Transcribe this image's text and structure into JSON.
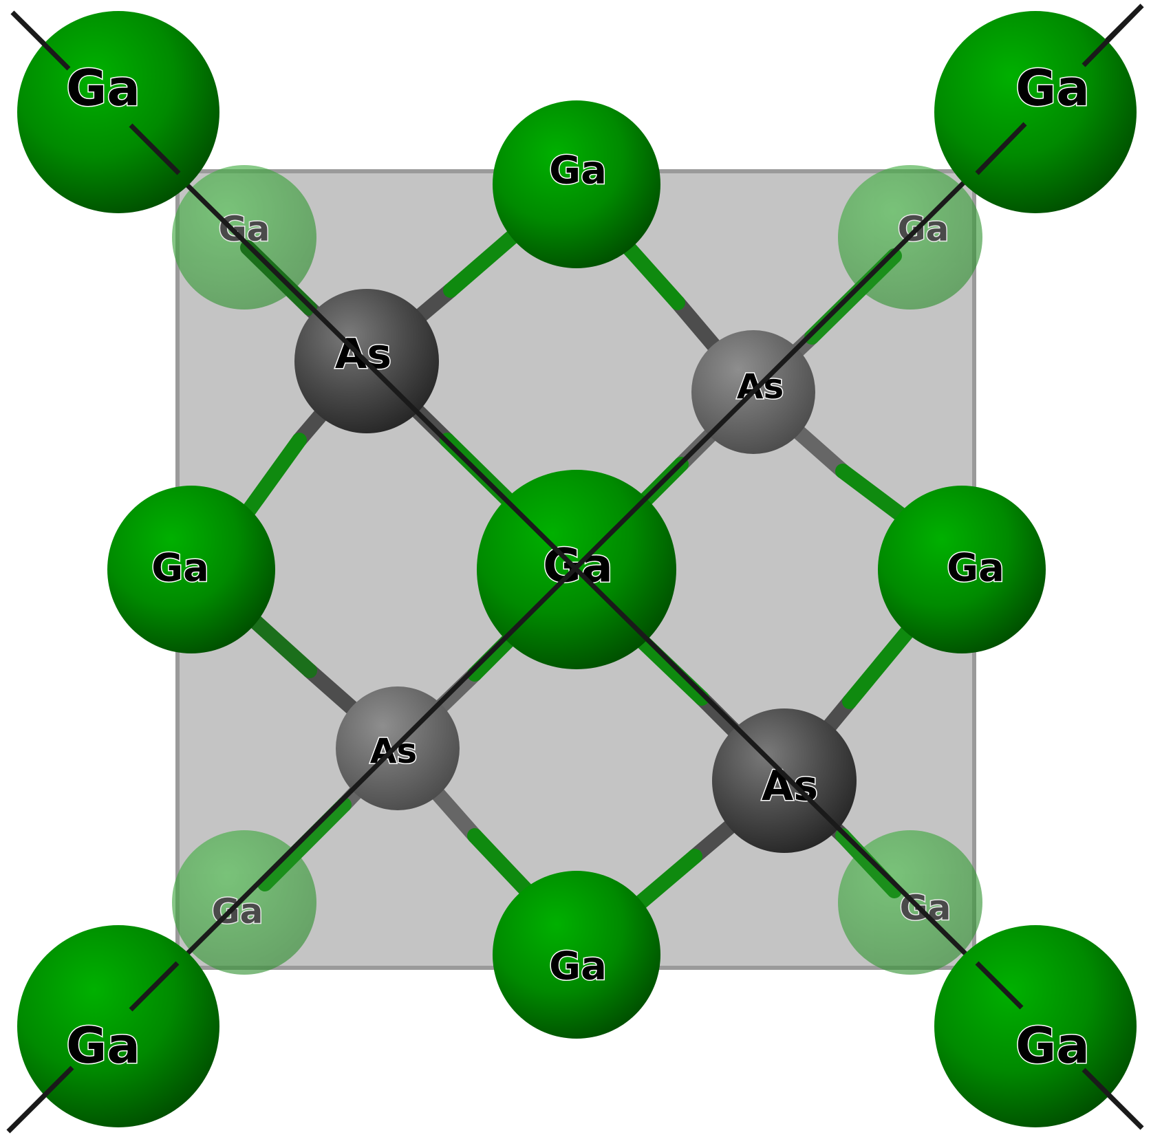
{
  "structure": {
    "colors": {
      "ga": "#0a8a0a",
      "ga_light": "#22b022",
      "ga_dark": "#005a00",
      "as": "#4a4a4a",
      "as_light": "#8a8a8a",
      "as_dark": "#2a2a2a",
      "cell_face": "#c4c4c4",
      "cell_edge": "#9a9a9a",
      "axis_line": "#1a1a1a"
    },
    "atoms": [
      {
        "id": "ga-back-tl",
        "element": "Ga",
        "label": "Ga",
        "depth": "back"
      },
      {
        "id": "ga-back-tr",
        "element": "Ga",
        "label": "Ga",
        "depth": "back"
      },
      {
        "id": "ga-back-bl",
        "element": "Ga",
        "label": "Ga",
        "depth": "back"
      },
      {
        "id": "ga-back-br",
        "element": "Ga",
        "label": "Ga",
        "depth": "back"
      },
      {
        "id": "ga-top",
        "element": "Ga",
        "label": "Ga",
        "depth": "mid"
      },
      {
        "id": "ga-left",
        "element": "Ga",
        "label": "Ga",
        "depth": "mid"
      },
      {
        "id": "ga-right",
        "element": "Ga",
        "label": "Ga",
        "depth": "mid"
      },
      {
        "id": "ga-bottom",
        "element": "Ga",
        "label": "Ga",
        "depth": "mid"
      },
      {
        "id": "as-tl",
        "element": "As",
        "label": "As",
        "depth": "front"
      },
      {
        "id": "as-tr",
        "element": "As",
        "label": "As",
        "depth": "back"
      },
      {
        "id": "as-bl",
        "element": "As",
        "label": "As",
        "depth": "back"
      },
      {
        "id": "as-br",
        "element": "As",
        "label": "As",
        "depth": "front"
      },
      {
        "id": "ga-center",
        "element": "Ga",
        "label": "Ga",
        "depth": "front"
      },
      {
        "id": "ga-corner-tl",
        "element": "Ga",
        "label": "Ga",
        "depth": "front"
      },
      {
        "id": "ga-corner-tr",
        "element": "Ga",
        "label": "Ga",
        "depth": "front"
      },
      {
        "id": "ga-corner-bl",
        "element": "Ga",
        "label": "Ga",
        "depth": "front"
      },
      {
        "id": "ga-corner-br",
        "element": "Ga",
        "label": "Ga",
        "depth": "front"
      }
    ],
    "bonds": [
      {
        "a": "as-tl",
        "b": "ga-top"
      },
      {
        "a": "as-tl",
        "b": "ga-left"
      },
      {
        "a": "as-tl",
        "b": "ga-back-tl"
      },
      {
        "a": "as-tl",
        "b": "ga-center"
      },
      {
        "a": "as-tr",
        "b": "ga-top"
      },
      {
        "a": "as-tr",
        "b": "ga-right"
      },
      {
        "a": "as-tr",
        "b": "ga-back-tr"
      },
      {
        "a": "as-tr",
        "b": "ga-center"
      },
      {
        "a": "as-bl",
        "b": "ga-left"
      },
      {
        "a": "as-bl",
        "b": "ga-bottom"
      },
      {
        "a": "as-bl",
        "b": "ga-back-bl"
      },
      {
        "a": "as-bl",
        "b": "ga-center"
      },
      {
        "a": "as-br",
        "b": "ga-right"
      },
      {
        "a": "as-br",
        "b": "ga-bottom"
      },
      {
        "a": "as-br",
        "b": "ga-back-br"
      },
      {
        "a": "as-br",
        "b": "ga-center"
      }
    ]
  }
}
